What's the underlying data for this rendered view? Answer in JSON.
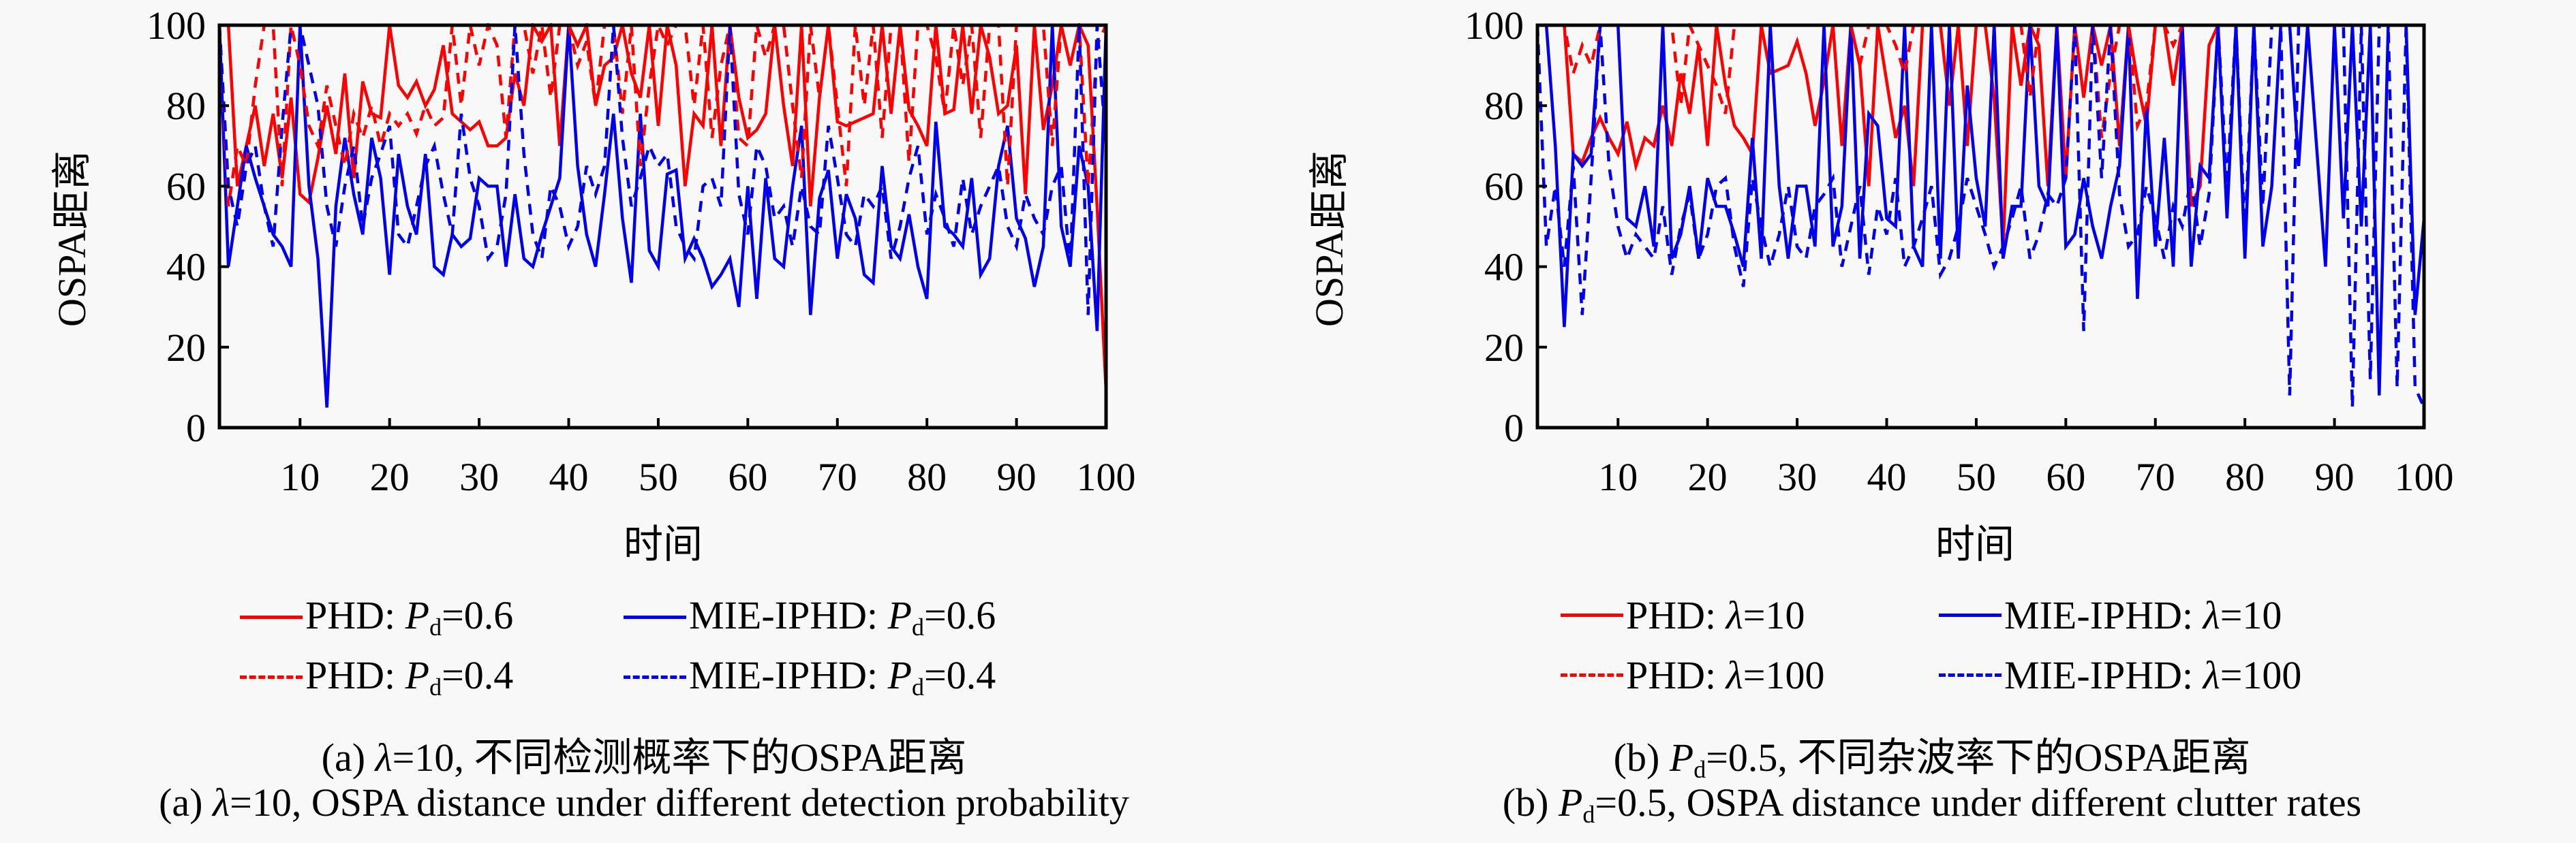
{
  "chart_data": [
    {
      "type": "line",
      "id": "a",
      "xlabel": "时间",
      "ylabel": "OSPA距离",
      "xlim": [
        1,
        100
      ],
      "ylim": [
        0,
        100
      ],
      "xticks": [
        10,
        20,
        30,
        40,
        50,
        60,
        70,
        80,
        90,
        100
      ],
      "yticks": [
        0,
        20,
        40,
        60,
        80,
        100
      ],
      "grid": false,
      "legend_position": "bottom",
      "legend": [
        {
          "method": "PHD: ",
          "param_sym": "P",
          "param_sub": "d",
          "param_val": "=0.6",
          "color": "#ff0000",
          "style": "solid"
        },
        {
          "method": "MIE-IPHD: ",
          "param_sym": "P",
          "param_sub": "d",
          "param_val": "=0.6",
          "color": "#0000ee",
          "style": "solid"
        },
        {
          "method": "PHD: ",
          "param_sym": "P",
          "param_sub": "d",
          "param_val": "=0.4",
          "color": "#ff0000",
          "style": "dashed"
        },
        {
          "method": "MIE-IPHD: ",
          "param_sym": "P",
          "param_sub": "d",
          "param_val": "=0.4",
          "color": "#0000ee",
          "style": "dashed"
        }
      ],
      "caption_cn": {
        "prefix": "(a) ",
        "sym": "λ",
        "rest": "=10, 不同检测概率下的OSPA距离"
      },
      "caption_en": {
        "prefix": "(a) ",
        "sym": "λ",
        "rest": "=10, OSPA distance under different detection probability"
      },
      "series": [
        {
          "name": "PHD: Pd=0.6",
          "color": "#ff0000",
          "style": "solid",
          "values": [
            100,
            100,
            60,
            70,
            80,
            65,
            78,
            62,
            82,
            58,
            56,
            67,
            80,
            68,
            88,
            62,
            86,
            78,
            77,
            100,
            85,
            82,
            86,
            80,
            84,
            95,
            78,
            76,
            74,
            76,
            70,
            70,
            72,
            88,
            80,
            100,
            96,
            100,
            70,
            100,
            95,
            100,
            80,
            90,
            92,
            100,
            88,
            82,
            100,
            75,
            100,
            90,
            60,
            78,
            75,
            100,
            70,
            100,
            82,
            72,
            74,
            78,
            100,
            80,
            65,
            100,
            55,
            82,
            100,
            76,
            75,
            76,
            77,
            78,
            100,
            78,
            100,
            79,
            75,
            70,
            100,
            78,
            79,
            100,
            78,
            100,
            92,
            78,
            80,
            95,
            58,
            100,
            74,
            85,
            100,
            90,
            100,
            95,
            55,
            9
          ]
        },
        {
          "name": "MIE-IPHD: Pd=0.6",
          "color": "#0000ee",
          "style": "solid",
          "values": [
            100,
            40,
            55,
            70,
            62,
            55,
            48,
            45,
            40,
            100,
            60,
            42,
            5,
            55,
            72,
            58,
            48,
            72,
            62,
            38,
            68,
            55,
            48,
            68,
            40,
            38,
            48,
            45,
            47,
            62,
            60,
            60,
            40,
            58,
            42,
            40,
            48,
            55,
            62,
            100,
            65,
            48,
            40,
            58,
            78,
            52,
            36,
            78,
            44,
            40,
            63,
            64,
            42,
            47,
            42,
            35,
            38,
            42,
            30,
            60,
            32,
            62,
            42,
            40,
            60,
            75,
            28,
            57,
            64,
            42,
            58,
            52,
            38,
            36,
            65,
            45,
            42,
            53,
            40,
            32,
            76,
            50,
            48,
            45,
            62,
            38,
            42,
            65,
            75,
            52,
            47,
            35,
            45,
            100,
            50,
            40,
            70,
            60,
            24,
            100
          ]
        },
        {
          "name": "PHD: Pd=0.4",
          "color": "#ff0000",
          "style": "dashed",
          "values": [
            100,
            55,
            70,
            65,
            85,
            100,
            100,
            60,
            100,
            90,
            75,
            70,
            85,
            75,
            65,
            78,
            72,
            80,
            70,
            78,
            75,
            78,
            73,
            80,
            75,
            77,
            100,
            80,
            100,
            90,
            100,
            95,
            72,
            100,
            100,
            88,
            100,
            82,
            100,
            100,
            90,
            96,
            80,
            100,
            100,
            78,
            100,
            65,
            85,
            100,
            95,
            100,
            100,
            80,
            100,
            72,
            90,
            100,
            72,
            70,
            100,
            92,
            100,
            100,
            80,
            62,
            100,
            82,
            100,
            80,
            60,
            100,
            80,
            100,
            72,
            100,
            100,
            66,
            100,
            100,
            92,
            78,
            100,
            85,
            100,
            72,
            100,
            100,
            60,
            100,
            100,
            100,
            100,
            70,
            100,
            100,
            100,
            60,
            95,
            100
          ]
        },
        {
          "name": "MIE-IPHD: Pd=0.4",
          "color": "#0000ee",
          "style": "dashed",
          "values": [
            100,
            60,
            50,
            65,
            70,
            55,
            45,
            75,
            100,
            100,
            90,
            80,
            55,
            45,
            60,
            70,
            50,
            62,
            68,
            75,
            48,
            45,
            55,
            65,
            70,
            58,
            48,
            78,
            62,
            55,
            42,
            45,
            58,
            100,
            68,
            48,
            42,
            60,
            55,
            45,
            50,
            65,
            58,
            65,
            100,
            72,
            55,
            62,
            70,
            65,
            68,
            50,
            45,
            42,
            60,
            62,
            55,
            100,
            58,
            48,
            70,
            65,
            52,
            55,
            45,
            60,
            50,
            48,
            75,
            62,
            48,
            45,
            58,
            55,
            60,
            42,
            50,
            62,
            70,
            48,
            58,
            52,
            45,
            62,
            48,
            55,
            60,
            65,
            50,
            45,
            58,
            52,
            48,
            60,
            65,
            40,
            100,
            28,
            100,
            70
          ]
        }
      ]
    },
    {
      "type": "line",
      "id": "b",
      "xlabel": "时间",
      "ylabel": "OSPA距离",
      "xlim": [
        1,
        100
      ],
      "ylim": [
        0,
        100
      ],
      "xticks": [
        10,
        20,
        30,
        40,
        50,
        60,
        70,
        80,
        90,
        100
      ],
      "yticks": [
        0,
        20,
        40,
        60,
        80,
        100
      ],
      "grid": false,
      "legend_position": "bottom",
      "legend": [
        {
          "method": "PHD: ",
          "param_sym": "λ",
          "param_sub": "",
          "param_val": "=10",
          "color": "#ff0000",
          "style": "solid"
        },
        {
          "method": "MIE-IPHD: ",
          "param_sym": "λ",
          "param_sub": "",
          "param_val": "=10",
          "color": "#0000ee",
          "style": "solid"
        },
        {
          "method": "PHD: ",
          "param_sym": "λ",
          "param_sub": "",
          "param_val": "=100",
          "color": "#ff0000",
          "style": "dashed"
        },
        {
          "method": "MIE-IPHD: ",
          "param_sym": "λ",
          "param_sub": "",
          "param_val": "=100",
          "color": "#0000ee",
          "style": "dashed"
        }
      ],
      "caption_cn": {
        "prefix": "(b) ",
        "sym": "P",
        "sub": "d",
        "rest": "=0.5, 不同杂波率下的OSPA距离"
      },
      "caption_en": {
        "prefix": "(b) ",
        "sym": "P",
        "sub": "d",
        "rest": "=0.5, OSPA distance under different clutter rates"
      },
      "series": [
        {
          "name": "PHD: λ=10",
          "color": "#ff0000",
          "style": "solid",
          "values": [
            100,
            100,
            100,
            100,
            68,
            66,
            72,
            77,
            72,
            68,
            76,
            65,
            72,
            70,
            80,
            70,
            88,
            78,
            95,
            70,
            100,
            85,
            75,
            72,
            68,
            100,
            88,
            89,
            90,
            96,
            88,
            75,
            86,
            100,
            70,
            100,
            90,
            60,
            100,
            86,
            72,
            80,
            60,
            100,
            100,
            100,
            80,
            100,
            70,
            100,
            100,
            82,
            45,
            100,
            85,
            100,
            95,
            60,
            100,
            62,
            100,
            82,
            100,
            90,
            100,
            70,
            100,
            86,
            75,
            100,
            100,
            85,
            100,
            55,
            60,
            95,
            100,
            100,
            100,
            100,
            100,
            100,
            100,
            100,
            100,
            100,
            100,
            100,
            100,
            100,
            100,
            100,
            100,
            100,
            100,
            100,
            100,
            100,
            100,
            100
          ]
        },
        {
          "name": "MIE-IPHD: λ=10",
          "color": "#0000ee",
          "style": "solid",
          "values": [
            100,
            100,
            70,
            25,
            68,
            65,
            68,
            100,
            100,
            100,
            52,
            50,
            60,
            45,
            100,
            42,
            48,
            60,
            42,
            62,
            55,
            55,
            48,
            40,
            72,
            42,
            100,
            60,
            42,
            60,
            60,
            45,
            100,
            45,
            55,
            100,
            42,
            78,
            75,
            52,
            50,
            100,
            45,
            40,
            100,
            42,
            100,
            42,
            85,
            62,
            50,
            100,
            42,
            55,
            55,
            100,
            60,
            55,
            100,
            45,
            48,
            62,
            50,
            42,
            55,
            65,
            100,
            32,
            80,
            45,
            72,
            40,
            100,
            40,
            65,
            62,
            100,
            52,
            100,
            42,
            100,
            45,
            60,
            100,
            100,
            65,
            100,
            70,
            40,
            100,
            52,
            100,
            50,
            100,
            8,
            100,
            100,
            100,
            28,
            52
          ]
        },
        {
          "name": "PHD: λ=100",
          "color": "#ff0000",
          "style": "dashed",
          "values": [
            100,
            100,
            100,
            100,
            88,
            95,
            90,
            100,
            100,
            100,
            100,
            100,
            100,
            100,
            100,
            100,
            80,
            100,
            95,
            90,
            85,
            78,
            100,
            100,
            100,
            100,
            100,
            100,
            100,
            100,
            100,
            100,
            100,
            100,
            100,
            100,
            90,
            100,
            100,
            100,
            95,
            88,
            100,
            100,
            100,
            100,
            100,
            100,
            100,
            100,
            100,
            100,
            100,
            100,
            100,
            82,
            100,
            100,
            100,
            100,
            100,
            100,
            100,
            72,
            88,
            100,
            100,
            75,
            80,
            100,
            100,
            95,
            100,
            100,
            100,
            100,
            100,
            100,
            100,
            100,
            100,
            100,
            100,
            100,
            100,
            100,
            100,
            100,
            100,
            100,
            100,
            100,
            100,
            100,
            100,
            100,
            100,
            100,
            100,
            100
          ]
        },
        {
          "name": "MIE-IPHD: λ=100",
          "color": "#0000ee",
          "style": "dashed",
          "values": [
            100,
            45,
            60,
            40,
            65,
            28,
            62,
            100,
            65,
            50,
            42,
            48,
            45,
            42,
            55,
            38,
            50,
            58,
            42,
            48,
            60,
            62,
            45,
            35,
            62,
            50,
            40,
            48,
            60,
            45,
            42,
            55,
            58,
            62,
            40,
            50,
            60,
            38,
            55,
            48,
            62,
            40,
            45,
            52,
            60,
            38,
            42,
            50,
            62,
            55,
            48,
            40,
            45,
            52,
            60,
            42,
            48,
            58,
            55,
            62,
            100,
            24,
            100,
            62,
            100,
            58,
            45,
            48,
            60,
            52,
            42,
            55,
            50,
            62,
            45,
            58,
            100,
            60,
            100,
            48,
            100,
            55,
            100,
            100,
            8,
            100,
            100,
            100,
            100,
            100,
            100,
            5,
            100,
            12,
            100,
            100,
            10,
            100,
            10,
            5
          ]
        }
      ]
    }
  ]
}
